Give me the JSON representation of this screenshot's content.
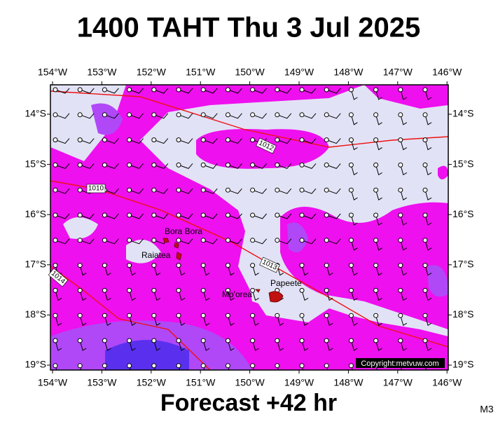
{
  "title": "1400 TAHT Thu 3 Jul 2025",
  "footer": "Forecast +42 hr",
  "model": "M3",
  "copyright": "Copyright:metvuw.com",
  "lon_ticks": [
    {
      "value": -154,
      "label": "154°W"
    },
    {
      "value": -153,
      "label": "153°W"
    },
    {
      "value": -152,
      "label": "152°W"
    },
    {
      "value": -151,
      "label": "151°W"
    },
    {
      "value": -150,
      "label": "150°W"
    },
    {
      "value": -149,
      "label": "149°W"
    },
    {
      "value": -148,
      "label": "148°W"
    },
    {
      "value": -147,
      "label": "147°W"
    },
    {
      "value": -146,
      "label": "146°W"
    }
  ],
  "lat_ticks": [
    {
      "value": -14,
      "label": "14°S"
    },
    {
      "value": -15,
      "label": "15°S"
    },
    {
      "value": -16,
      "label": "16°S"
    },
    {
      "value": -17,
      "label": "17°S"
    },
    {
      "value": -18,
      "label": "18°S"
    },
    {
      "value": -19,
      "label": "19°S"
    }
  ],
  "places": [
    "Bora Bora",
    "Raiatea",
    "Mo'orea",
    "Papeete"
  ],
  "isobars": [
    "1012",
    "1010",
    "1013",
    "1014"
  ]
}
